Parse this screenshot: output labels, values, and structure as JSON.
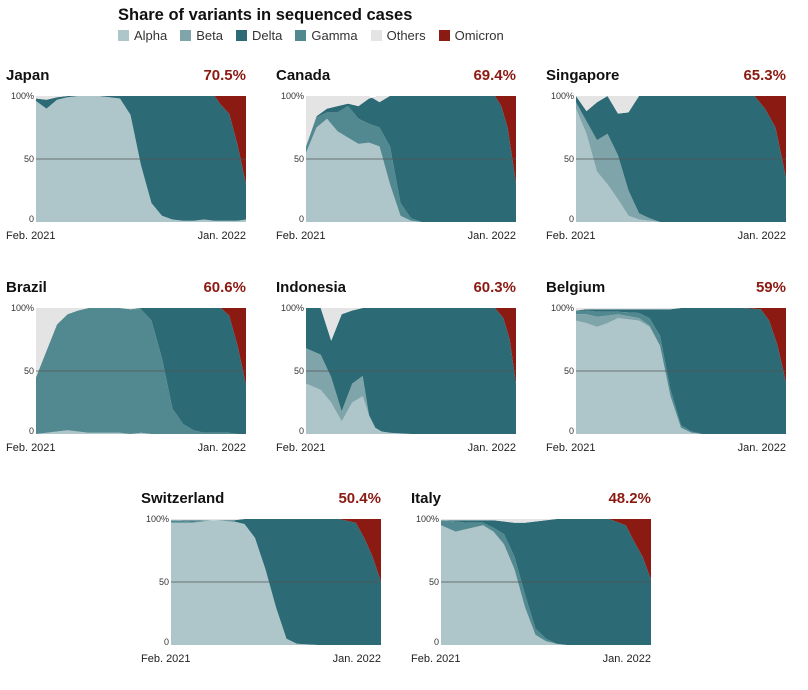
{
  "header": {
    "title": "Share of variants in sequenced cases"
  },
  "legend": [
    {
      "key": "alpha",
      "label": "Alpha",
      "color": "#aec5c9"
    },
    {
      "key": "beta",
      "label": "Beta",
      "color": "#7fa4aa"
    },
    {
      "key": "delta",
      "label": "Delta",
      "color": "#2c6b75"
    },
    {
      "key": "gamma",
      "label": "Gamma",
      "color": "#528990"
    },
    {
      "key": "others",
      "label": "Others",
      "color": "#e4e4e4"
    },
    {
      "key": "omicron",
      "label": "Omicron",
      "color": "#8b1a12"
    }
  ],
  "chart_data": [
    {
      "type": "area",
      "stacked": true,
      "country": "Japan",
      "omicron_label": "70.5%",
      "x_start_label": "Feb. 2021",
      "x_end_label": "Jan. 2022",
      "ylim": [
        0,
        100
      ],
      "yticks": [
        "100%",
        "50",
        "0"
      ],
      "x": [
        0,
        0.05,
        0.1,
        0.15,
        0.2,
        0.3,
        0.4,
        0.45,
        0.5,
        0.55,
        0.6,
        0.65,
        0.7,
        0.75,
        0.8,
        0.85,
        0.88,
        0.92,
        0.96,
        1
      ],
      "series": {
        "alpha": [
          96,
          90,
          97,
          99,
          100,
          100,
          98,
          85,
          45,
          15,
          5,
          2,
          1,
          1,
          2,
          1,
          1,
          1,
          1,
          2
        ],
        "beta": [
          0,
          0,
          0,
          0,
          0,
          0,
          0,
          0,
          0,
          0,
          0,
          0,
          0,
          0,
          0,
          0,
          0,
          0,
          0,
          0
        ],
        "gamma": [
          0,
          0,
          0,
          0,
          0,
          0,
          0,
          0,
          0,
          0,
          0,
          0,
          0,
          0,
          0,
          0,
          0,
          0,
          0,
          0
        ],
        "delta": [
          2,
          7,
          2,
          1,
          0,
          0,
          2,
          15,
          55,
          85,
          95,
          98,
          99,
          99,
          98,
          99,
          92,
          85,
          60,
          28
        ],
        "omicron": [
          0,
          0,
          0,
          0,
          0,
          0,
          0,
          0,
          0,
          0,
          0,
          0,
          0,
          0,
          0,
          0,
          7,
          14,
          39,
          70
        ],
        "others": [
          2,
          3,
          1,
          0,
          0,
          0,
          0,
          0,
          0,
          0,
          0,
          0,
          0,
          0,
          0,
          0,
          0,
          0,
          0,
          0
        ]
      }
    },
    {
      "type": "area",
      "stacked": true,
      "country": "Canada",
      "omicron_label": "69.4%",
      "x_start_label": "Feb. 2021",
      "x_end_label": "Jan. 2022",
      "ylim": [
        0,
        100
      ],
      "yticks": [
        "100%",
        "50",
        "0"
      ],
      "x": [
        0,
        0.05,
        0.1,
        0.15,
        0.2,
        0.25,
        0.3,
        0.35,
        0.4,
        0.45,
        0.5,
        0.55,
        0.6,
        0.7,
        0.8,
        0.9,
        0.93,
        0.96,
        1
      ],
      "series": {
        "alpha": [
          55,
          75,
          82,
          72,
          67,
          62,
          63,
          60,
          30,
          5,
          1,
          0,
          0,
          0,
          0,
          0,
          0,
          0,
          0
        ],
        "beta": [
          0,
          0,
          0,
          0,
          0,
          0,
          0,
          0,
          0,
          0,
          0,
          0,
          0,
          0,
          0,
          0,
          0,
          0,
          0
        ],
        "gamma": [
          5,
          8,
          5,
          15,
          25,
          20,
          15,
          15,
          30,
          10,
          2,
          0,
          0,
          0,
          0,
          0,
          0,
          0,
          0
        ],
        "delta": [
          0,
          1,
          3,
          5,
          2,
          10,
          20,
          30,
          40,
          85,
          97,
          100,
          100,
          100,
          100,
          100,
          92,
          75,
          31
        ],
        "omicron": [
          0,
          0,
          0,
          0,
          0,
          0,
          0,
          0,
          0,
          0,
          0,
          0,
          0,
          0,
          0,
          0,
          8,
          25,
          69
        ],
        "others": [
          40,
          16,
          10,
          8,
          6,
          8,
          2,
          -5,
          0,
          0,
          0,
          0,
          0,
          0,
          0,
          0,
          0,
          0,
          0
        ]
      }
    },
    {
      "type": "area",
      "stacked": true,
      "country": "Singapore",
      "omicron_label": "65.3%",
      "x_start_label": "Feb. 2021",
      "x_end_label": "Jan. 2022",
      "ylim": [
        0,
        100
      ],
      "yticks": [
        "100%",
        "50",
        "0"
      ],
      "x": [
        0,
        0.05,
        0.1,
        0.15,
        0.2,
        0.25,
        0.3,
        0.35,
        0.4,
        0.45,
        0.5,
        0.6,
        0.7,
        0.8,
        0.85,
        0.9,
        0.95,
        1
      ],
      "series": {
        "alpha": [
          90,
          70,
          40,
          30,
          18,
          5,
          2,
          1,
          0,
          0,
          0,
          0,
          0,
          0,
          0,
          0,
          0,
          0
        ],
        "beta": [
          5,
          10,
          25,
          40,
          35,
          20,
          5,
          2,
          0,
          0,
          0,
          0,
          0,
          0,
          0,
          0,
          0,
          0
        ],
        "gamma": [
          0,
          0,
          0,
          0,
          0,
          0,
          0,
          0,
          0,
          0,
          0,
          0,
          0,
          0,
          0,
          0,
          0,
          0
        ],
        "delta": [
          5,
          8,
          30,
          30,
          33,
          62,
          93,
          97,
          100,
          100,
          100,
          100,
          100,
          100,
          100,
          90,
          75,
          35
        ],
        "omicron": [
          0,
          0,
          0,
          0,
          0,
          0,
          0,
          0,
          0,
          0,
          0,
          0,
          0,
          0,
          0,
          10,
          25,
          65
        ],
        "others": [
          0,
          12,
          5,
          0,
          14,
          13,
          0,
          0,
          0,
          0,
          0,
          0,
          0,
          0,
          0,
          0,
          0,
          0
        ]
      }
    },
    {
      "type": "area",
      "stacked": true,
      "country": "Brazil",
      "omicron_label": "60.6%",
      "x_start_label": "Feb. 2021",
      "x_end_label": "Jan. 2022",
      "ylim": [
        0,
        100
      ],
      "yticks": [
        "100%",
        "50",
        "0"
      ],
      "x": [
        0,
        0.05,
        0.1,
        0.15,
        0.2,
        0.25,
        0.3,
        0.35,
        0.4,
        0.45,
        0.5,
        0.55,
        0.6,
        0.65,
        0.7,
        0.75,
        0.8,
        0.85,
        0.88,
        0.92,
        0.96,
        1
      ],
      "series": {
        "alpha": [
          0,
          1,
          2,
          3,
          2,
          1,
          1,
          1,
          1,
          0,
          1,
          0,
          0,
          0,
          0,
          0,
          0,
          0,
          0,
          0,
          0,
          0
        ],
        "beta": [
          0,
          0,
          0,
          0,
          0,
          0,
          0,
          0,
          0,
          0,
          0,
          0,
          0,
          0,
          0,
          0,
          0,
          0,
          0,
          0,
          0,
          0
        ],
        "gamma": [
          45,
          65,
          85,
          92,
          96,
          99,
          99,
          99,
          99,
          99,
          98,
          90,
          60,
          20,
          8,
          3,
          1,
          1,
          1,
          1,
          0,
          0
        ],
        "delta": [
          0,
          0,
          0,
          0,
          0,
          0,
          0,
          0,
          0,
          0,
          1,
          10,
          40,
          80,
          92,
          97,
          99,
          99,
          99,
          93,
          70,
          39
        ],
        "omicron": [
          0,
          0,
          0,
          0,
          0,
          0,
          0,
          0,
          0,
          0,
          0,
          0,
          0,
          0,
          0,
          0,
          0,
          0,
          0,
          6,
          30,
          61
        ],
        "others": [
          55,
          34,
          13,
          5,
          2,
          0,
          0,
          0,
          0,
          1,
          0,
          0,
          0,
          0,
          0,
          0,
          0,
          0,
          0,
          0,
          0,
          0
        ]
      }
    },
    {
      "type": "area",
      "stacked": true,
      "country": "Indonesia",
      "omicron_label": "60.3%",
      "x_start_label": "Feb. 2021",
      "x_end_label": "Jan. 2022",
      "ylim": [
        0,
        100
      ],
      "yticks": [
        "100%",
        "50",
        "0"
      ],
      "x": [
        0,
        0.07,
        0.12,
        0.17,
        0.22,
        0.27,
        0.3,
        0.33,
        0.36,
        0.4,
        0.5,
        0.6,
        0.7,
        0.8,
        0.9,
        0.94,
        0.97,
        1
      ],
      "series": {
        "alpha": [
          40,
          35,
          25,
          10,
          25,
          30,
          15,
          5,
          2,
          1,
          0,
          0,
          0,
          0,
          0,
          0,
          0,
          0
        ],
        "beta": [
          28,
          28,
          20,
          8,
          15,
          16,
          0,
          0,
          0,
          0,
          0,
          0,
          0,
          0,
          0,
          0,
          0,
          0
        ],
        "gamma": [
          0,
          0,
          0,
          0,
          0,
          0,
          0,
          0,
          0,
          0,
          0,
          0,
          0,
          0,
          0,
          0,
          0,
          0
        ],
        "delta": [
          32,
          37,
          29,
          77,
          58,
          54,
          85,
          95,
          98,
          99,
          100,
          100,
          100,
          100,
          100,
          92,
          75,
          40
        ],
        "omicron": [
          0,
          0,
          0,
          0,
          0,
          0,
          0,
          0,
          0,
          0,
          0,
          0,
          0,
          0,
          0,
          8,
          25,
          60
        ],
        "others": [
          0,
          0,
          26,
          5,
          2,
          0,
          0,
          0,
          0,
          0,
          0,
          0,
          0,
          0,
          0,
          0,
          0,
          0
        ]
      }
    },
    {
      "type": "area",
      "stacked": true,
      "country": "Belgium",
      "omicron_label": "59%",
      "x_start_label": "Feb. 2021",
      "x_end_label": "Jan. 2022",
      "ylim": [
        0,
        100
      ],
      "yticks": [
        "100%",
        "50",
        "0"
      ],
      "x": [
        0,
        0.05,
        0.1,
        0.15,
        0.2,
        0.3,
        0.35,
        0.4,
        0.45,
        0.5,
        0.55,
        0.6,
        0.7,
        0.8,
        0.88,
        0.92,
        0.96,
        1
      ],
      "series": {
        "alpha": [
          90,
          88,
          85,
          88,
          92,
          90,
          85,
          70,
          30,
          5,
          1,
          0,
          0,
          0,
          0,
          0,
          0,
          0
        ],
        "beta": [
          5,
          7,
          8,
          6,
          3,
          2,
          1,
          0,
          0,
          0,
          0,
          0,
          0,
          0,
          0,
          0,
          0,
          0
        ],
        "gamma": [
          3,
          3,
          4,
          3,
          2,
          4,
          6,
          8,
          5,
          2,
          1,
          0,
          0,
          0,
          0,
          0,
          0,
          0
        ],
        "delta": [
          0,
          1,
          2,
          2,
          2,
          3,
          7,
          21,
          64,
          93,
          98,
          100,
          100,
          100,
          99,
          90,
          70,
          41
        ],
        "omicron": [
          0,
          0,
          0,
          0,
          0,
          0,
          0,
          0,
          0,
          0,
          0,
          0,
          0,
          0,
          1,
          10,
          30,
          59
        ],
        "others": [
          2,
          1,
          1,
          1,
          1,
          1,
          1,
          1,
          1,
          0,
          0,
          0,
          0,
          0,
          0,
          0,
          0,
          0
        ]
      }
    },
    {
      "type": "area",
      "stacked": true,
      "country": "Switzerland",
      "omicron_label": "50.4%",
      "x_start_label": "Feb. 2021",
      "x_end_label": "Jan. 2022",
      "ylim": [
        0,
        100
      ],
      "yticks": [
        "100%",
        "50",
        "0"
      ],
      "x": [
        0,
        0.1,
        0.2,
        0.3,
        0.35,
        0.4,
        0.45,
        0.5,
        0.55,
        0.6,
        0.7,
        0.8,
        0.88,
        0.92,
        0.96,
        1
      ],
      "series": {
        "alpha": [
          97,
          97,
          99,
          98,
          96,
          85,
          60,
          30,
          5,
          1,
          0,
          0,
          0,
          0,
          0,
          0
        ],
        "beta": [
          0,
          0,
          0,
          0,
          0,
          0,
          0,
          0,
          0,
          0,
          0,
          0,
          0,
          0,
          0,
          0
        ],
        "gamma": [
          2,
          1,
          0,
          0,
          0,
          0,
          0,
          0,
          0,
          0,
          0,
          0,
          0,
          0,
          0,
          0
        ],
        "delta": [
          0,
          1,
          0,
          1,
          4,
          15,
          40,
          70,
          95,
          99,
          100,
          100,
          97,
          85,
          70,
          50
        ],
        "omicron": [
          0,
          0,
          0,
          0,
          0,
          0,
          0,
          0,
          0,
          0,
          0,
          0,
          3,
          15,
          30,
          50
        ],
        "others": [
          1,
          1,
          1,
          1,
          0,
          0,
          0,
          0,
          0,
          0,
          0,
          0,
          0,
          0,
          0,
          0
        ]
      }
    },
    {
      "type": "area",
      "stacked": true,
      "country": "Italy",
      "omicron_label": "48.2%",
      "x_start_label": "Feb. 2021",
      "x_end_label": "Jan. 2022",
      "ylim": [
        0,
        100
      ],
      "yticks": [
        "100%",
        "50",
        "0"
      ],
      "x": [
        0,
        0.07,
        0.12,
        0.2,
        0.25,
        0.3,
        0.35,
        0.4,
        0.45,
        0.5,
        0.55,
        0.6,
        0.7,
        0.8,
        0.88,
        0.92,
        0.96,
        1
      ],
      "series": {
        "alpha": [
          95,
          90,
          92,
          95,
          90,
          80,
          60,
          30,
          8,
          3,
          1,
          0,
          0,
          0,
          0,
          0,
          0,
          0
        ],
        "beta": [
          0,
          0,
          0,
          0,
          0,
          0,
          0,
          0,
          0,
          0,
          0,
          0,
          0,
          0,
          0,
          0,
          0,
          0
        ],
        "gamma": [
          4,
          8,
          5,
          2,
          3,
          8,
          10,
          10,
          5,
          2,
          0,
          0,
          0,
          0,
          0,
          0,
          0,
          0
        ],
        "delta": [
          0,
          1,
          2,
          2,
          6,
          10,
          27,
          57,
          85,
          94,
          99,
          100,
          100,
          100,
          95,
          82,
          70,
          52
        ],
        "omicron": [
          0,
          0,
          0,
          0,
          0,
          0,
          0,
          0,
          0,
          0,
          0,
          0,
          0,
          0,
          5,
          18,
          30,
          48
        ],
        "others": [
          1,
          1,
          1,
          1,
          1,
          2,
          3,
          3,
          2,
          1,
          0,
          0,
          0,
          0,
          0,
          0,
          0,
          0
        ]
      }
    }
  ]
}
